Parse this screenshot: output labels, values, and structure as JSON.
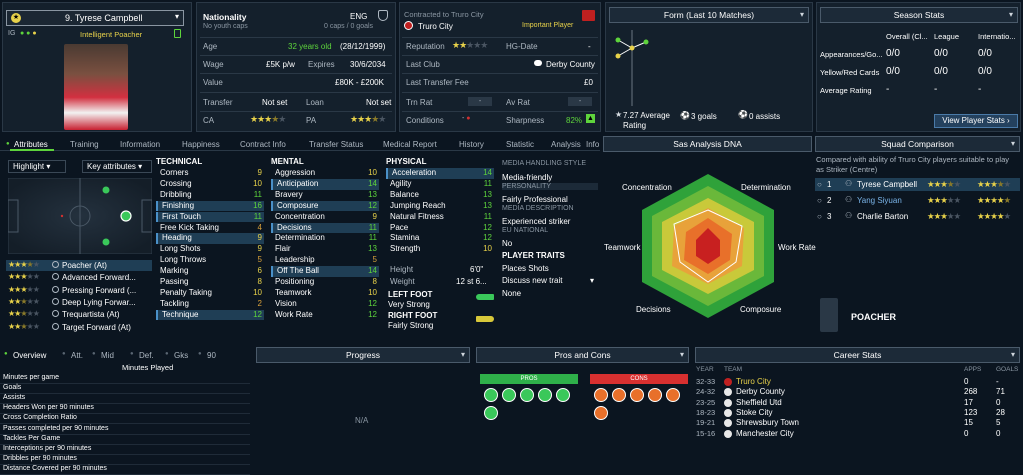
{
  "player": {
    "number_name": "9. Tyrese Campbell",
    "role": "Intelligent Poacher",
    "id_label": "IG"
  },
  "info": {
    "nationality_label": "Nationality",
    "nationality_value": "ENG",
    "caps_note": "No youth caps",
    "caps_value": "0 caps / 0 goals",
    "age_label": "Age",
    "age_value": "32 years old",
    "dob": "(28/12/1999)",
    "wage_label": "Wage",
    "wage_value": "£5K p/w",
    "expires_label": "Expires",
    "expires_value": "30/6/2034",
    "value_label": "Value",
    "value_value": "£80K - £200K",
    "transfer_label": "Transfer",
    "transfer_value": "Not set",
    "loan_label": "Loan",
    "loan_value": "Not set",
    "ca_label": "CA",
    "pa_label": "PA"
  },
  "contract": {
    "contracted_label": "Contracted to Truro City",
    "club": "Truro City",
    "status": "Important Player",
    "reputation_label": "Reputation",
    "hg_label": "HG-Date",
    "hg_value": "-",
    "last_club_label": "Last Club",
    "last_club_value": "Derby County",
    "last_fee_label": "Last Transfer Fee",
    "last_fee_value": "£0",
    "trn_rat_label": "Trn Rat",
    "av_rat_label": "Av Rat",
    "conditions_label": "Conditions",
    "sharpness_label": "Sharpness",
    "sharpness_value": "82%"
  },
  "form": {
    "title": "Form (Last 10 Matches)",
    "avg_value": "7.27 Average",
    "avg_label": "Rating",
    "goals": "3 goals",
    "assists": "0 assists"
  },
  "season": {
    "title": "Season Stats",
    "cols": [
      "Overall (Cl...",
      "League",
      "Internatio..."
    ],
    "rows": [
      {
        "label": "Appearances/Go...",
        "vals": [
          "0/0",
          "0/0",
          "0/0"
        ]
      },
      {
        "label": "Yellow/Red Cards",
        "vals": [
          "0/0",
          "0/0",
          "0/0"
        ]
      },
      {
        "label": "Average Rating",
        "vals": [
          "-",
          "-",
          "-"
        ]
      }
    ],
    "button": "View Player Stats"
  },
  "tabs": [
    "Attributes",
    "Training",
    "Information",
    "Happiness",
    "Contract Info",
    "Transfer Status",
    "Medical Report",
    "History",
    "Statistic",
    "Analysis",
    "Info"
  ],
  "highlight": {
    "left": "Highlight",
    "right": "Key attributes"
  },
  "roles": [
    {
      "stars": 3.5,
      "name": "Poacher (At)"
    },
    {
      "stars": 3,
      "name": "Advanced Forward..."
    },
    {
      "stars": 3,
      "name": "Pressing Forward (..."
    },
    {
      "stars": 2.5,
      "name": "Deep Lying Forwar..."
    },
    {
      "stars": 2.5,
      "name": "Trequartista (At)"
    },
    {
      "stars": 2.5,
      "name": "Target Forward (At)"
    }
  ],
  "technical": {
    "title": "TECHNICAL",
    "items": [
      {
        "n": "Corners",
        "v": "9",
        "h": false
      },
      {
        "n": "Crossing",
        "v": "10",
        "h": false
      },
      {
        "n": "Dribbling",
        "v": "11",
        "h": false
      },
      {
        "n": "Finishing",
        "v": "16",
        "h": true
      },
      {
        "n": "First Touch",
        "v": "11",
        "h": true
      },
      {
        "n": "Free Kick Taking",
        "v": "4",
        "h": false
      },
      {
        "n": "Heading",
        "v": "9",
        "h": true
      },
      {
        "n": "Long Shots",
        "v": "9",
        "h": false
      },
      {
        "n": "Long Throws",
        "v": "5",
        "h": false
      },
      {
        "n": "Marking",
        "v": "6",
        "h": false
      },
      {
        "n": "Passing",
        "v": "8",
        "h": false
      },
      {
        "n": "Penalty Taking",
        "v": "10",
        "h": false
      },
      {
        "n": "Tackling",
        "v": "2",
        "h": false
      },
      {
        "n": "Technique",
        "v": "12",
        "h": true
      }
    ]
  },
  "mental": {
    "title": "MENTAL",
    "items": [
      {
        "n": "Aggression",
        "v": "10",
        "h": false
      },
      {
        "n": "Anticipation",
        "v": "14",
        "h": true
      },
      {
        "n": "Bravery",
        "v": "13",
        "h": false
      },
      {
        "n": "Composure",
        "v": "12",
        "h": true
      },
      {
        "n": "Concentration",
        "v": "9",
        "h": false
      },
      {
        "n": "Decisions",
        "v": "11",
        "h": true
      },
      {
        "n": "Determination",
        "v": "11",
        "h": false
      },
      {
        "n": "Flair",
        "v": "13",
        "h": false
      },
      {
        "n": "Leadership",
        "v": "5",
        "h": false
      },
      {
        "n": "Off The Ball",
        "v": "14",
        "h": true
      },
      {
        "n": "Positioning",
        "v": "8",
        "h": false
      },
      {
        "n": "Teamwork",
        "v": "10",
        "h": false
      },
      {
        "n": "Vision",
        "v": "12",
        "h": false
      },
      {
        "n": "Work Rate",
        "v": "12",
        "h": false
      }
    ]
  },
  "physical": {
    "title": "PHYSICAL",
    "items": [
      {
        "n": "Acceleration",
        "v": "14",
        "h": true
      },
      {
        "n": "Agility",
        "v": "11",
        "h": false
      },
      {
        "n": "Balance",
        "v": "13",
        "h": false
      },
      {
        "n": "Jumping Reach",
        "v": "13",
        "h": false
      },
      {
        "n": "Natural Fitness",
        "v": "11",
        "h": false
      },
      {
        "n": "Pace",
        "v": "12",
        "h": false
      },
      {
        "n": "Stamina",
        "v": "12",
        "h": false
      },
      {
        "n": "Strength",
        "v": "10",
        "h": false
      }
    ],
    "height_label": "Height",
    "height_value": "6'0\"",
    "weight_label": "Weight",
    "weight_value": "12 st 6...",
    "left_foot_label": "LEFT FOOT",
    "left_foot_value": "Very Strong",
    "right_foot_label": "RIGHT FOOT",
    "right_foot_value": "Fairly Strong"
  },
  "media": {
    "style_title": "MEDIA HANDLING STYLE",
    "style_value": "Media-friendly",
    "personality_title": "PERSONALITY",
    "personality_value": "Fairly Professional",
    "desc_title": "MEDIA DESCRIPTION",
    "desc_value": "Experienced striker",
    "eu_title": "EU NATIONAL",
    "eu_value": "No",
    "traits_title": "PLAYER TRAITS",
    "trait1": "Places Shots",
    "trait2": "Discuss new trait",
    "trait3": "None"
  },
  "dna": {
    "title": "Sas Analysis DNA",
    "labels": [
      "Determination",
      "Work Rate",
      "Composure",
      "Decisions",
      "Teamwork",
      "Concentration"
    ]
  },
  "squad": {
    "title": "Squad Comparison",
    "desc": "Compared with ability of Truro City players suitable to play as Striker (Centre)",
    "rows": [
      {
        "rank": "1",
        "name": "Tyrese Campbell",
        "ca": 3.5,
        "pa": 3.5
      },
      {
        "rank": "2",
        "name": "Yang Siyuan",
        "ca": 3,
        "pa": 4.5
      },
      {
        "rank": "3",
        "name": "Charlie Barton",
        "ca": 3,
        "pa": 4
      }
    ],
    "role_label": "POACHER"
  },
  "overview": {
    "tabs": [
      "Overview",
      "Att.",
      "Mid",
      "Def.",
      "Gks",
      "90"
    ],
    "minutes_label": "Minutes Played",
    "stats": [
      "Minutes per game",
      "Goals",
      "Assists",
      "Headers Won per 90 minutes",
      "Cross Completion Ratio",
      "Passes completed per 90 minutes",
      "Tackles Per Game",
      "Interceptions per 90 minutes",
      "Dribbles per 90 minutes",
      "Distance Covered per 90 minutes"
    ]
  },
  "progress": {
    "title": "Progress",
    "na": "N/A"
  },
  "proscons": {
    "title": "Pros and Cons",
    "pros": "PROS",
    "cons": "CONS"
  },
  "career": {
    "title": "Career Stats",
    "head_year": "YEAR",
    "head_team": "TEAM",
    "head_apps": "APPS",
    "head_goals": "GOALS",
    "rows": [
      {
        "year": "32-33",
        "team": "Truro City",
        "apps": "0",
        "goals": "-",
        "current": true
      },
      {
        "year": "24-32",
        "team": "Derby County",
        "apps": "268",
        "goals": "71",
        "current": false
      },
      {
        "year": "23-25",
        "team": "Sheffield Utd",
        "apps": "17",
        "goals": "0",
        "current": false
      },
      {
        "year": "18-23",
        "team": "Stoke City",
        "apps": "123",
        "goals": "28",
        "current": false
      },
      {
        "year": "19-21",
        "team": "Shrewsbury Town",
        "apps": "15",
        "goals": "5",
        "current": false
      },
      {
        "year": "15-16",
        "team": "Manchester City",
        "apps": "0",
        "goals": "0",
        "current": false
      }
    ]
  }
}
